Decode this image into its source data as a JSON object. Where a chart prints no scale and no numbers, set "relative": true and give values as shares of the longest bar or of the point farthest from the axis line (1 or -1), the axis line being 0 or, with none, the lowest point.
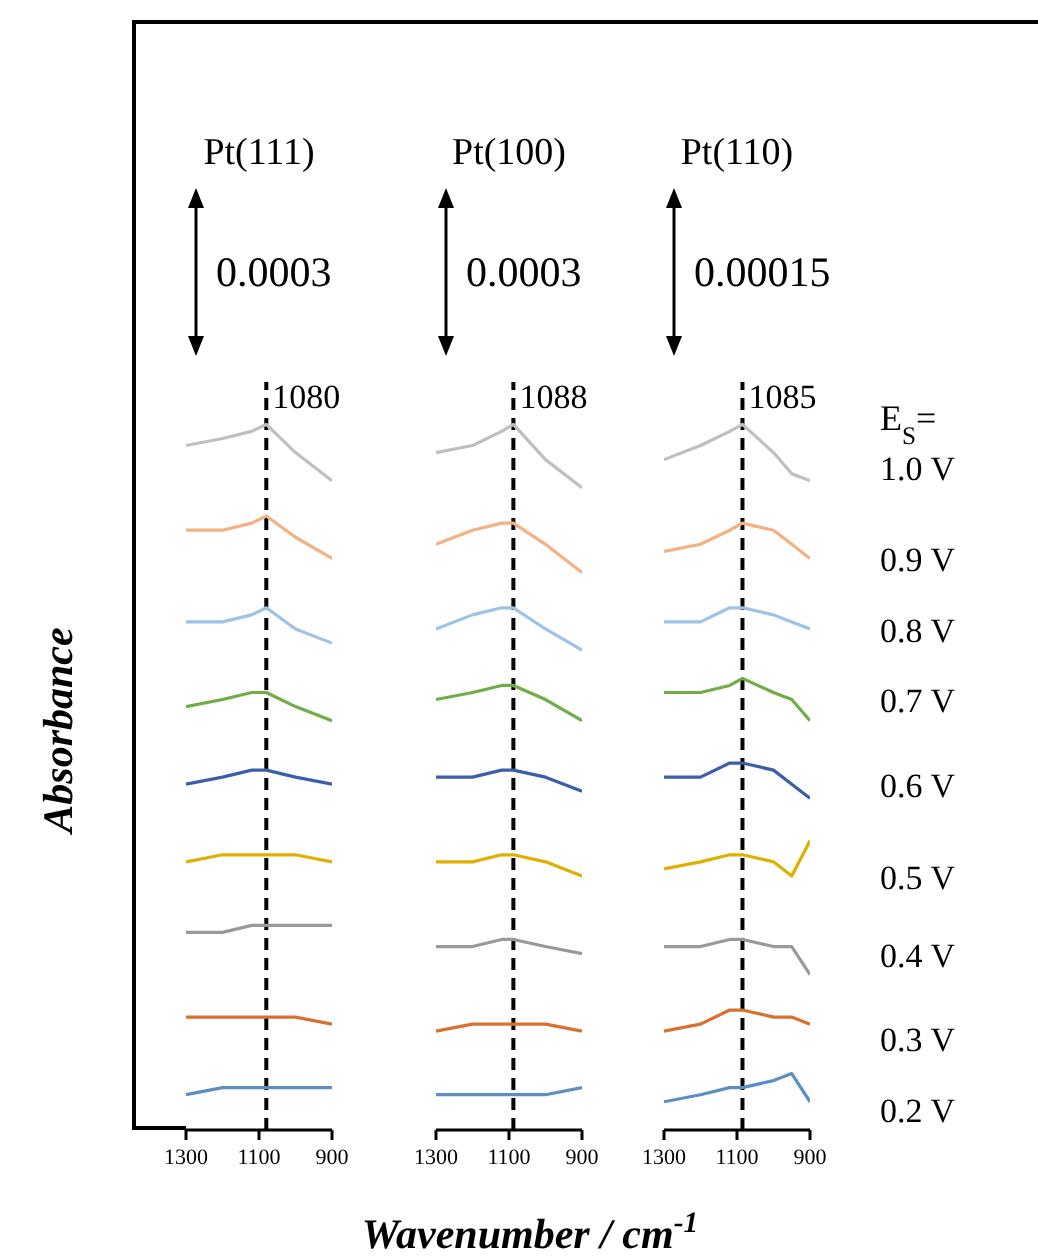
{
  "chart_data": [
    {
      "type": "line",
      "title": "Pt(111)",
      "ylabel": "Absorbance",
      "annotations": [
        "0.0003"
      ],
      "relative": true,
      "x": [
        1300,
        1200,
        1120,
        1080,
        1000,
        900
      ],
      "xlim": [
        1300,
        900
      ],
      "xticks": [
        1300,
        1100,
        900
      ],
      "ref_lines": [
        {
          "axis": "x",
          "value": 1080,
          "label": "1080",
          "line_style": "dashed",
          "color": "#000000"
        }
      ],
      "series": [
        {
          "color": "#bfbfbf",
          "values": [
            0.97,
            0.98,
            0.99,
            1,
            0.96,
            0.92
          ]
        },
        {
          "color": "#f4b183",
          "values": [
            0.85,
            0.85,
            0.86,
            0.87,
            0.84,
            0.81
          ]
        },
        {
          "color": "#9dc3e6",
          "values": [
            0.72,
            0.72,
            0.73,
            0.74,
            0.71,
            0.69
          ]
        },
        {
          "color": "#70ad47",
          "values": [
            0.6,
            0.61,
            0.62,
            0.62,
            0.6,
            0.58
          ]
        },
        {
          "color": "#3a5ea8",
          "values": [
            0.49,
            0.5,
            0.51,
            0.51,
            0.5,
            0.49
          ]
        },
        {
          "color": "#e0b000",
          "values": [
            0.38,
            0.39,
            0.39,
            0.39,
            0.39,
            0.38
          ]
        },
        {
          "color": "#999999",
          "values": [
            0.28,
            0.28,
            0.29,
            0.29,
            0.29,
            0.29
          ]
        },
        {
          "color": "#d8702e",
          "values": [
            0.16,
            0.16,
            0.16,
            0.16,
            0.16,
            0.15
          ]
        },
        {
          "color": "#5b8fc4",
          "values": [
            0.05,
            0.06,
            0.06,
            0.06,
            0.06,
            0.06
          ]
        }
      ]
    },
    {
      "type": "line",
      "title": "Pt(100)",
      "xlabel": "Wavenumber / cm$^{-1}$",
      "annotations": [
        "0.0003"
      ],
      "relative": true,
      "x": [
        1300,
        1200,
        1120,
        1088,
        1000,
        900
      ],
      "xlim": [
        1300,
        900
      ],
      "xticks": [
        1300,
        1100,
        900
      ],
      "ref_lines": [
        {
          "axis": "x",
          "value": 1088,
          "label": "1088",
          "line_style": "dashed",
          "color": "#000000"
        }
      ],
      "series": [
        {
          "color": "#bfbfbf",
          "values": [
            0.96,
            0.97,
            0.99,
            1,
            0.95,
            0.91
          ]
        },
        {
          "color": "#f4b183",
          "values": [
            0.83,
            0.85,
            0.86,
            0.86,
            0.83,
            0.79
          ]
        },
        {
          "color": "#9dc3e6",
          "values": [
            0.71,
            0.73,
            0.74,
            0.74,
            0.71,
            0.68
          ]
        },
        {
          "color": "#70ad47",
          "values": [
            0.61,
            0.62,
            0.63,
            0.63,
            0.61,
            0.58
          ]
        },
        {
          "color": "#3a5ea8",
          "values": [
            0.5,
            0.5,
            0.51,
            0.51,
            0.5,
            0.48
          ]
        },
        {
          "color": "#e0b000",
          "values": [
            0.38,
            0.38,
            0.39,
            0.39,
            0.38,
            0.36
          ]
        },
        {
          "color": "#999999",
          "values": [
            0.26,
            0.26,
            0.27,
            0.27,
            0.26,
            0.25
          ]
        },
        {
          "color": "#d8702e",
          "values": [
            0.14,
            0.15,
            0.15,
            0.15,
            0.15,
            0.14
          ]
        },
        {
          "color": "#5b8fc4",
          "values": [
            0.05,
            0.05,
            0.05,
            0.05,
            0.05,
            0.06
          ]
        }
      ]
    },
    {
      "type": "line",
      "title": "Pt(110)",
      "legend_title": "E$_{S}$=",
      "annotations": [
        "0.00015"
      ],
      "relative": true,
      "x": [
        1300,
        1200,
        1120,
        1085,
        1000,
        950,
        900
      ],
      "xlim": [
        1300,
        900
      ],
      "xticks": [
        1300,
        1100,
        900
      ],
      "ref_lines": [
        {
          "axis": "x",
          "value": 1085,
          "label": "1085",
          "line_style": "dashed",
          "color": "#000000"
        }
      ],
      "series": [
        {
          "name": "1.0 V",
          "color": "#bfbfbf",
          "values": [
            0.95,
            0.97,
            0.99,
            1,
            0.96,
            0.93,
            0.92
          ]
        },
        {
          "name": "0.9 V",
          "color": "#f4b183",
          "values": [
            0.82,
            0.83,
            0.85,
            0.86,
            0.85,
            0.83,
            0.81
          ]
        },
        {
          "name": "0.8 V",
          "color": "#9dc3e6",
          "values": [
            0.72,
            0.72,
            0.74,
            0.74,
            0.73,
            0.72,
            0.71
          ]
        },
        {
          "name": "0.7 V",
          "color": "#70ad47",
          "values": [
            0.62,
            0.62,
            0.63,
            0.64,
            0.62,
            0.61,
            0.58
          ]
        },
        {
          "name": "0.6 V",
          "color": "#3a5ea8",
          "values": [
            0.5,
            0.5,
            0.52,
            0.52,
            0.51,
            0.49,
            0.47
          ]
        },
        {
          "name": "0.5 V",
          "color": "#e0b000",
          "values": [
            0.37,
            0.38,
            0.39,
            0.39,
            0.38,
            0.36,
            0.41
          ]
        },
        {
          "name": "0.4 V",
          "color": "#999999",
          "values": [
            0.26,
            0.26,
            0.27,
            0.27,
            0.26,
            0.26,
            0.22
          ]
        },
        {
          "name": "0.3 V",
          "color": "#d8702e",
          "values": [
            0.14,
            0.15,
            0.17,
            0.17,
            0.16,
            0.16,
            0.15
          ]
        },
        {
          "name": "0.2 V",
          "color": "#5b8fc4",
          "values": [
            0.04,
            0.05,
            0.06,
            0.06,
            0.07,
            0.08,
            0.04
          ]
        }
      ]
    }
  ]
}
